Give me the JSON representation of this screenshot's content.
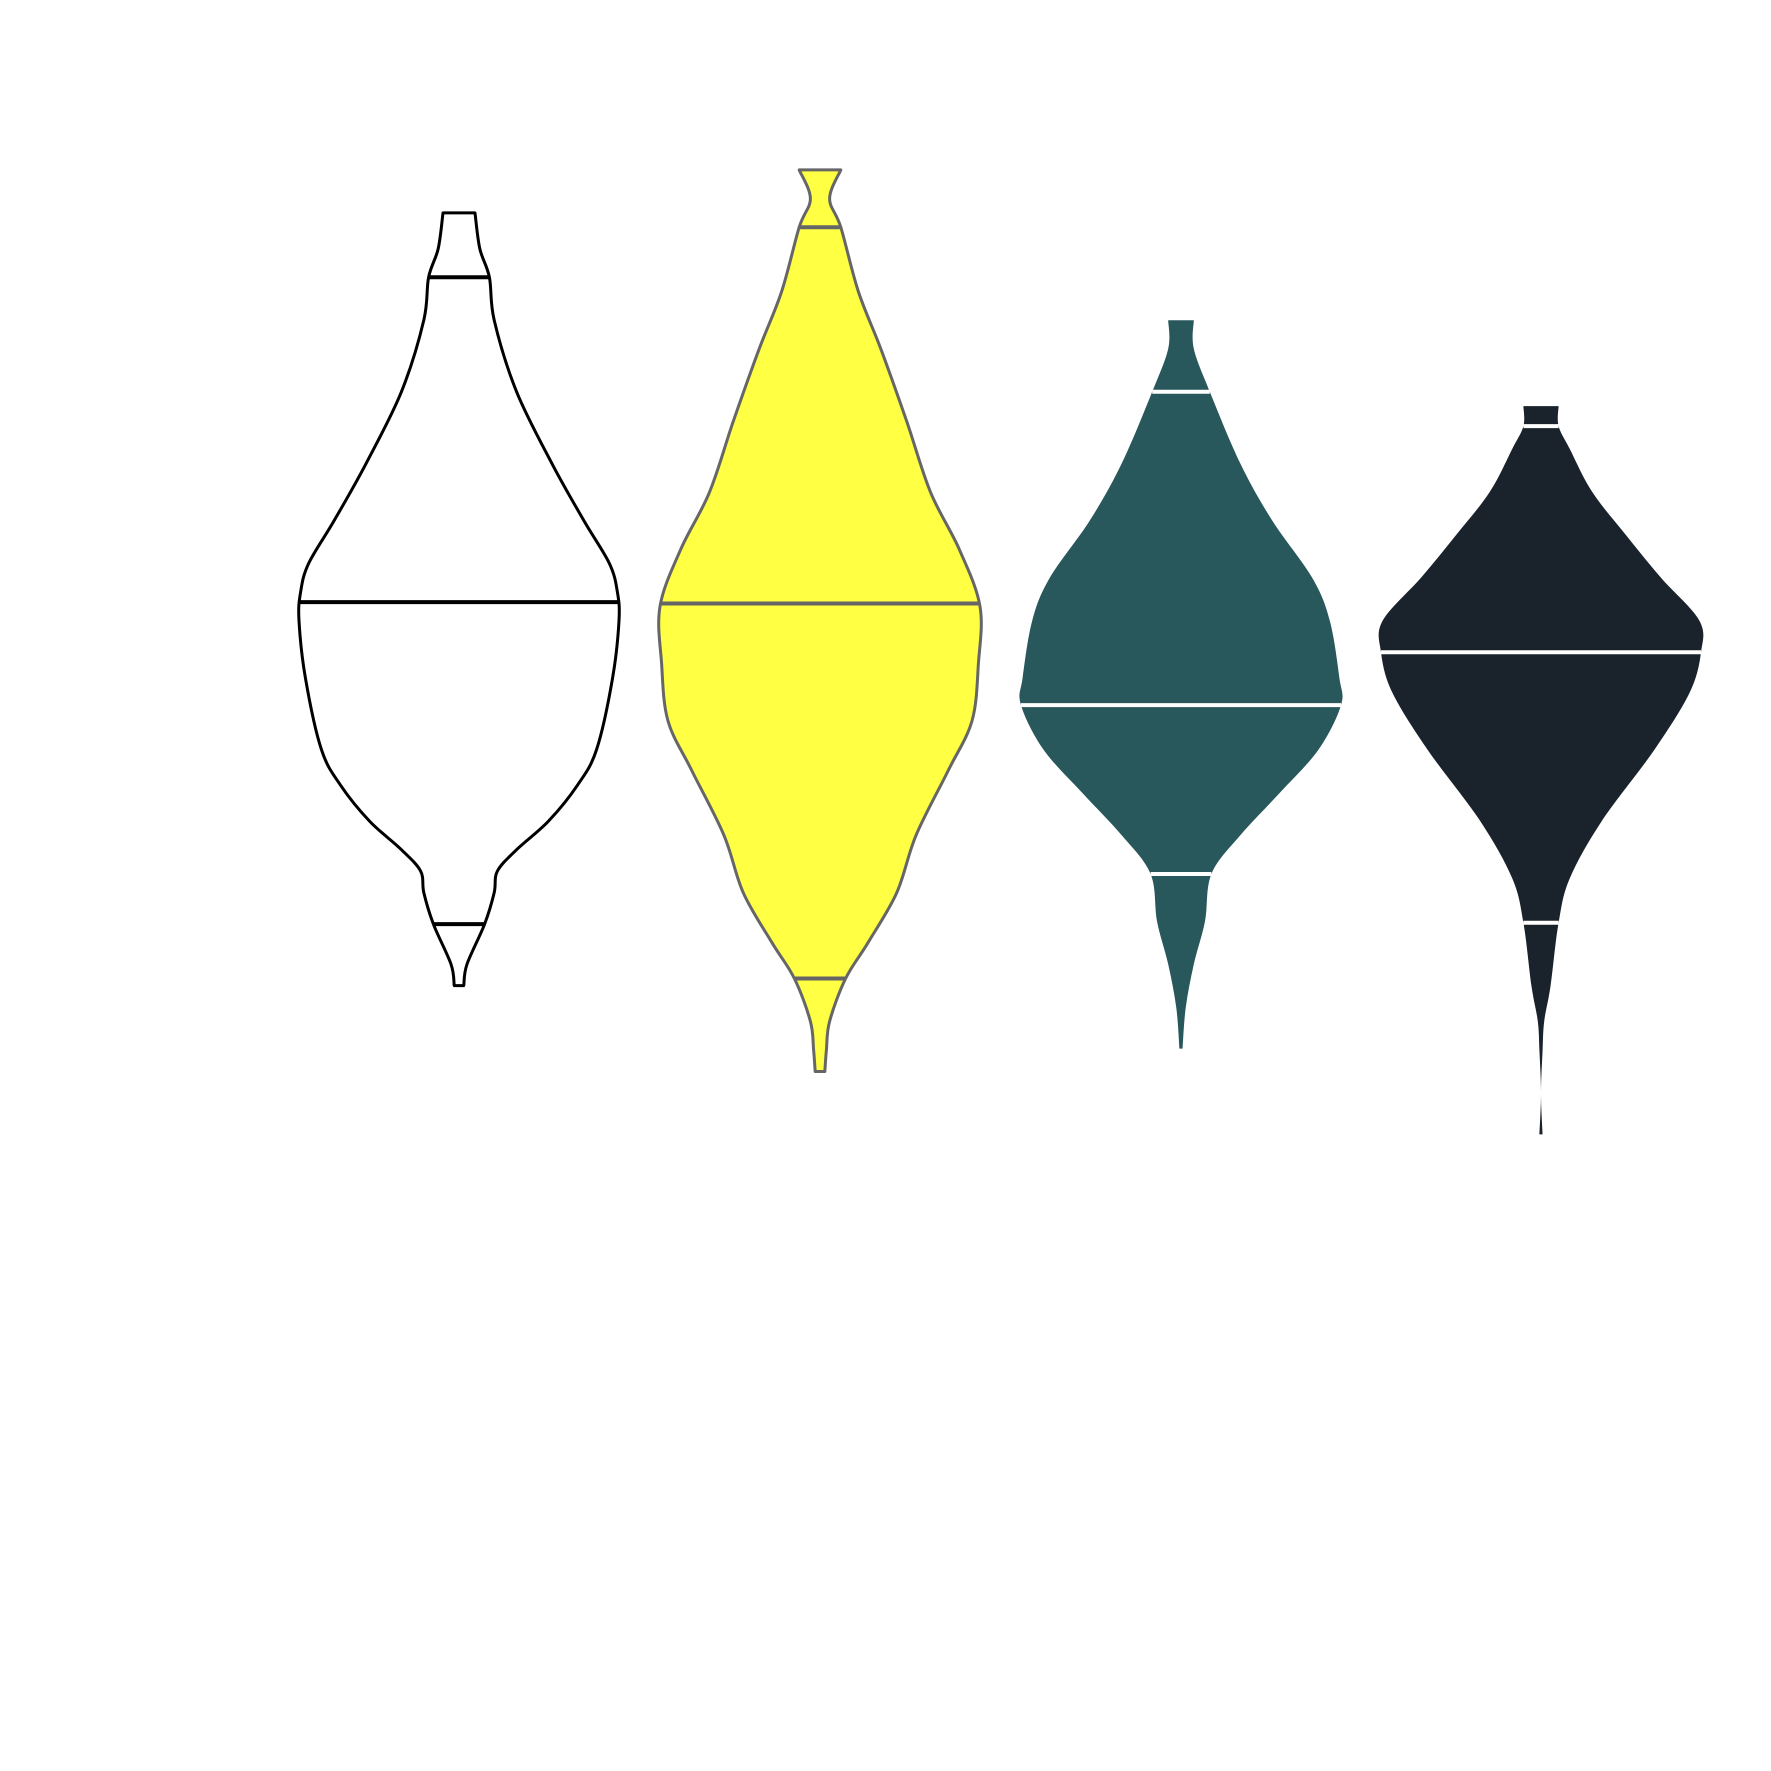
{
  "chart_data": {
    "type": "violin",
    "orientation": "vertical",
    "title": "",
    "xlabel": "",
    "ylabel": "",
    "axes_visible": false,
    "grid": false,
    "legend": "none",
    "ylim": [
      0,
      100
    ],
    "violins": [
      {
        "fill": "#ffffff",
        "stroke": "#000000",
        "line_color": "#000000",
        "min": 33.5,
        "max": 87.5,
        "quantile_lines": [
          37.8,
          60.3,
          83.0
        ],
        "profile": [
          [
            33.5,
            0.03
          ],
          [
            35.0,
            0.05
          ],
          [
            37.8,
            0.16
          ],
          [
            40.0,
            0.22
          ],
          [
            41.5,
            0.24
          ],
          [
            43.0,
            0.36
          ],
          [
            45.0,
            0.56
          ],
          [
            47.5,
            0.74
          ],
          [
            50.0,
            0.86
          ],
          [
            55.0,
            0.96
          ],
          [
            59.0,
            1.0
          ],
          [
            61.0,
            0.99
          ],
          [
            63.0,
            0.94
          ],
          [
            66.0,
            0.78
          ],
          [
            70.0,
            0.58
          ],
          [
            75.0,
            0.36
          ],
          [
            80.0,
            0.22
          ],
          [
            83.0,
            0.19
          ],
          [
            85.0,
            0.13
          ],
          [
            87.5,
            0.1
          ]
        ]
      },
      {
        "fill": "#ffff44",
        "stroke": "#666666",
        "line_color": "#666666",
        "min": 27.5,
        "max": 90.5,
        "quantile_lines": [
          34.0,
          60.2,
          86.5
        ],
        "profile": [
          [
            27.5,
            0.03
          ],
          [
            29.0,
            0.04
          ],
          [
            31.0,
            0.06
          ],
          [
            34.0,
            0.16
          ],
          [
            36.5,
            0.3
          ],
          [
            40.0,
            0.48
          ],
          [
            44.0,
            0.6
          ],
          [
            48.5,
            0.8
          ],
          [
            52.0,
            0.95
          ],
          [
            56.0,
            0.99
          ],
          [
            60.0,
            1.0
          ],
          [
            64.0,
            0.87
          ],
          [
            68.0,
            0.69
          ],
          [
            73.0,
            0.54
          ],
          [
            78.0,
            0.38
          ],
          [
            82.0,
            0.24
          ],
          [
            86.5,
            0.13
          ],
          [
            88.5,
            0.06
          ],
          [
            90.5,
            0.13
          ]
        ]
      },
      {
        "fill": "#28575c",
        "stroke": "none",
        "line_color": "#ffffff",
        "min": 29.1,
        "max": 80.0,
        "quantile_lines": [
          41.3,
          53.1,
          75.0
        ],
        "profile": [
          [
            29.1,
            0.01
          ],
          [
            32.0,
            0.03
          ],
          [
            35.0,
            0.08
          ],
          [
            38.0,
            0.15
          ],
          [
            41.3,
            0.19
          ],
          [
            44.0,
            0.37
          ],
          [
            47.0,
            0.62
          ],
          [
            50.0,
            0.86
          ],
          [
            53.1,
            1.0
          ],
          [
            55.0,
            0.99
          ],
          [
            59.0,
            0.93
          ],
          [
            62.0,
            0.82
          ],
          [
            66.0,
            0.57
          ],
          [
            70.0,
            0.37
          ],
          [
            75.0,
            0.18
          ],
          [
            78.0,
            0.08
          ],
          [
            80.0,
            0.08
          ]
        ]
      },
      {
        "fill": "#1a232b",
        "stroke": "none",
        "line_color": "#ffffff",
        "min": 23.1,
        "max": 74.0,
        "quantile_lines": [
          37.9,
          56.8,
          72.6
        ],
        "profile": [
          [
            23.1,
            0.01
          ],
          [
            26.0,
            0.0
          ],
          [
            29.0,
            0.01
          ],
          [
            31.0,
            0.02
          ],
          [
            33.5,
            0.06
          ],
          [
            37.9,
            0.11
          ],
          [
            41.0,
            0.18
          ],
          [
            45.0,
            0.38
          ],
          [
            50.0,
            0.71
          ],
          [
            54.0,
            0.93
          ],
          [
            56.8,
            1.0
          ],
          [
            59.0,
            0.99
          ],
          [
            62.0,
            0.75
          ],
          [
            65.0,
            0.53
          ],
          [
            68.0,
            0.32
          ],
          [
            71.0,
            0.18
          ],
          [
            72.6,
            0.11
          ],
          [
            74.0,
            0.11
          ]
        ]
      }
    ]
  }
}
